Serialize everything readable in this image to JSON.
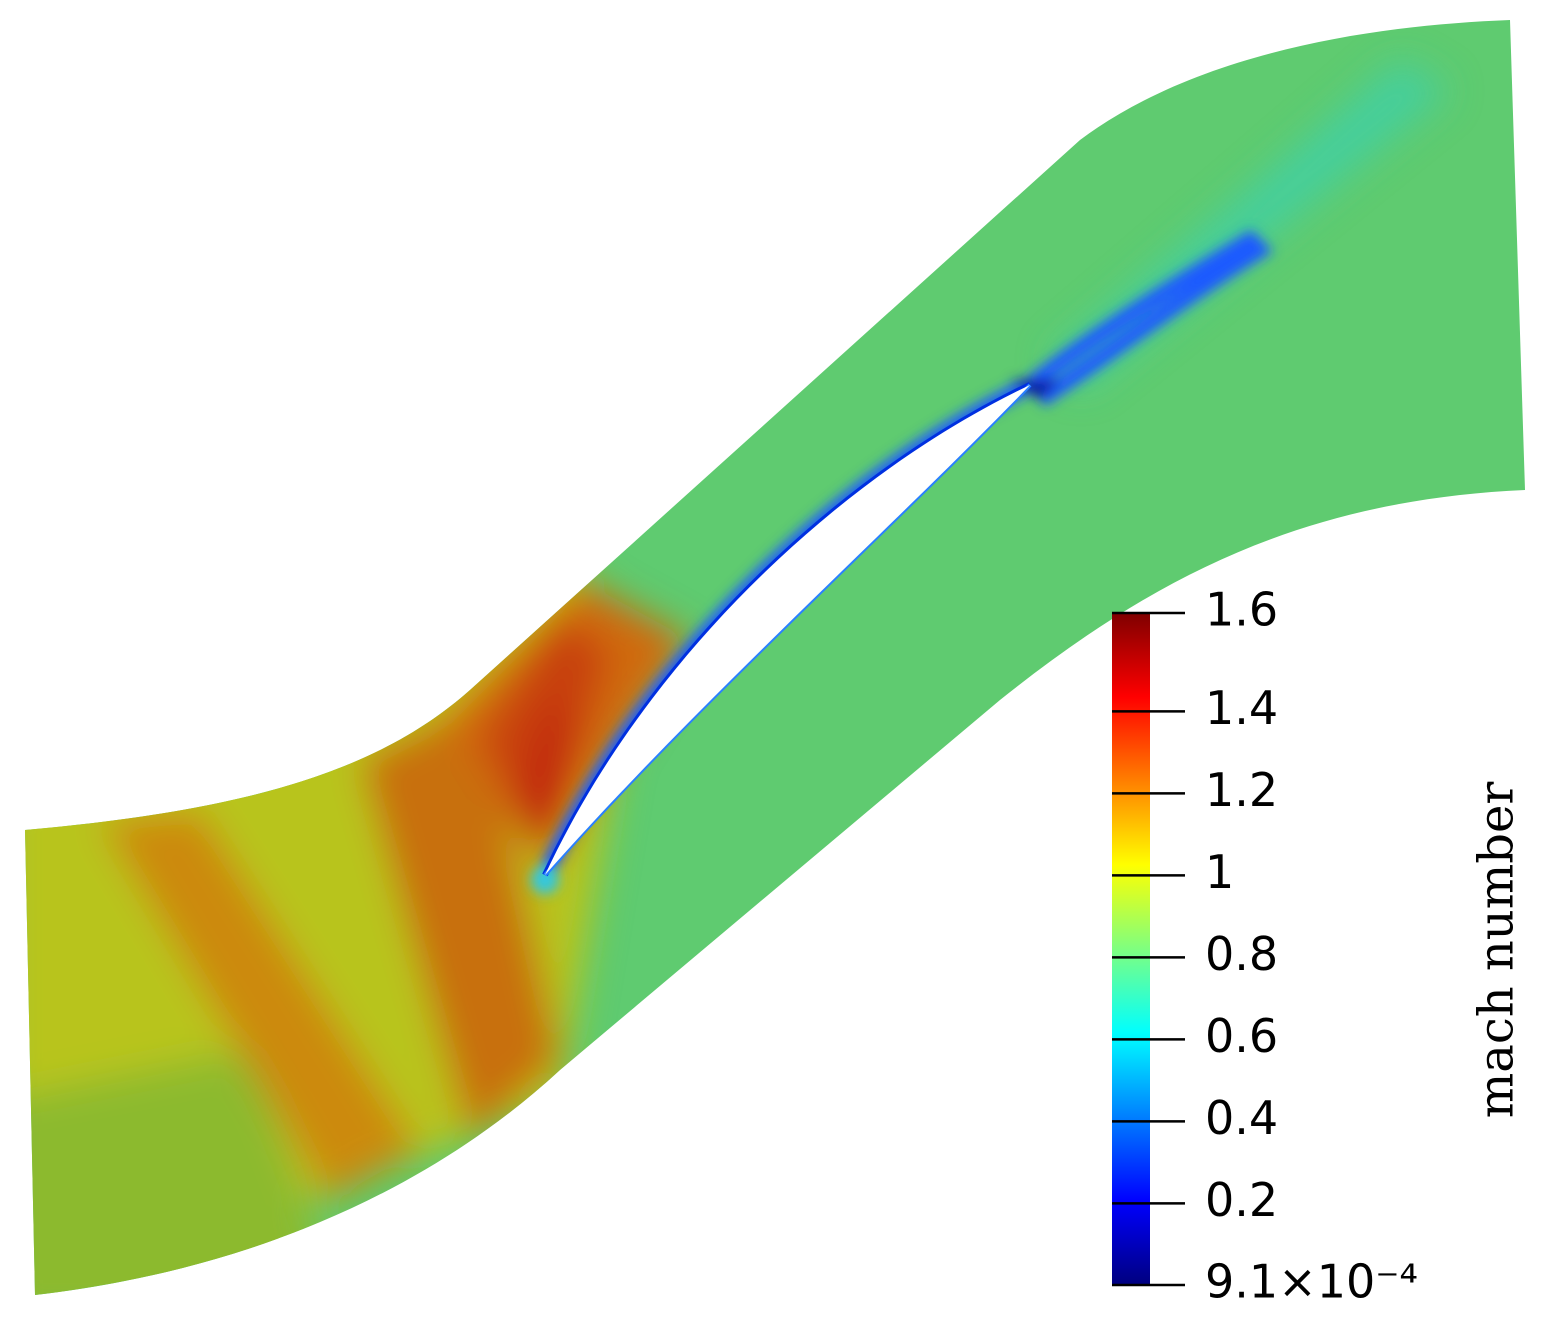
{
  "chart_data": {
    "type": "contour",
    "colorbar": {
      "label": "mach number",
      "ylim": [
        0.00091,
        1.64
      ],
      "yticks": [
        {
          "value": 0.00091,
          "label": "9.1×10⁻⁴"
        },
        0.2,
        0.4,
        0.6,
        0.8,
        1,
        1.2,
        1.4,
        {
          "value": 1.64,
          "label": "1.6"
        }
      ],
      "colormap": [
        "#00007f",
        "#0000ff",
        "#007fff",
        "#00ffff",
        "#7fff7f",
        "#ffff00",
        "#ff7f00",
        "#ff0000",
        "#7f0000"
      ]
    }
  }
}
